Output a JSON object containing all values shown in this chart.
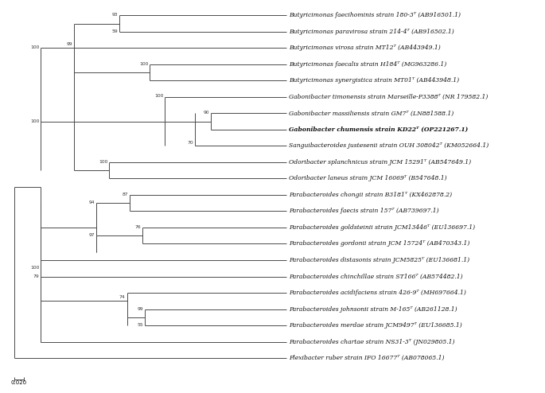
{
  "figure_width": 6.85,
  "figure_height": 4.94,
  "dpi": 100,
  "background_color": "#ffffff",
  "line_color": "#4a4a4a",
  "line_width": 0.7,
  "font_size": 5.5,
  "scale_bar_label": "0.020",
  "taxa": [
    {
      "label": "Butyricimonas faecihominis strain 180-3ᵀ (AB916501.1)",
      "bold": false,
      "y": 1
    },
    {
      "label": "Butyricimonas paravirosa strain 214-4ᵀ (AB916502.1)",
      "bold": false,
      "y": 2
    },
    {
      "label": "Butyricimonas virosa strain MT12ᵀ (AB443949.1)",
      "bold": false,
      "y": 3
    },
    {
      "label": "Butyricimonas faecalis strain H184ᵀ (MG963286.1)",
      "bold": false,
      "y": 4
    },
    {
      "label": "Butyricimonas synergistica strain MT01ᵀ (AB443948.1)",
      "bold": false,
      "y": 5
    },
    {
      "label": "Gabonibacter timonensis strain Marseille-P3388ᵀ (NR 179582.1)",
      "bold": false,
      "y": 6
    },
    {
      "label": "Gabonibacter massiliensis strain GM7ᵀ (LN881588.1)",
      "bold": false,
      "y": 7
    },
    {
      "label": "Gabonibacter chumensis strain KD22ᵀ (OP221267.1)",
      "bold": true,
      "y": 8
    },
    {
      "label": "Sanguibacteroides justesenii strain OUH 308042ᵀ (KM052664.1)",
      "bold": false,
      "y": 9
    },
    {
      "label": "Odoribacter splanchnicus strain JCM 15291ᵀ (AB547649.1)",
      "bold": false,
      "y": 10
    },
    {
      "label": "Odoribacter laneus strain JCM 16069ᵀ (B547648.1)",
      "bold": false,
      "y": 11
    },
    {
      "label": "Parabacteroides chongii strain B3181ᵀ (KX462878.2)",
      "bold": false,
      "y": 12
    },
    {
      "label": "Parabacteroides faecis strain 157ᵀ (AB739697.1)",
      "bold": false,
      "y": 13
    },
    {
      "label": "Parabacteroides goldsteinii strain JCM13446ᵀ (EU136697.1)",
      "bold": false,
      "y": 14
    },
    {
      "label": "Parabacteroides gordonii strain JCM 15724ᵀ (AB470343.1)",
      "bold": false,
      "y": 15
    },
    {
      "label": "Parabacteroides distasonis strain JCM5825ᵀ (EU136681.1)",
      "bold": false,
      "y": 16
    },
    {
      "label": "Parabacteroides chinchillae strain ST166ᵀ (AB574482.1)",
      "bold": false,
      "y": 17
    },
    {
      "label": "Parabacteroides acidifaciens strain 426-9ᵀ (MH697664.1)",
      "bold": false,
      "y": 18
    },
    {
      "label": "Parabacteroides johnsonii strain M-165ᵀ (AB261128.1)",
      "bold": false,
      "y": 19
    },
    {
      "label": "Parabacteroides merdae strain JCM9497ᵀ (EU136685.1)",
      "bold": false,
      "y": 20
    },
    {
      "label": "Parabacteroides chartae strain NS31-3ᵀ (JN029805.1)",
      "bold": false,
      "y": 21
    },
    {
      "label": "Flexibacter ruber strain IFO 16677ᵀ (AB078065.1)",
      "bold": false,
      "y": 22
    }
  ]
}
